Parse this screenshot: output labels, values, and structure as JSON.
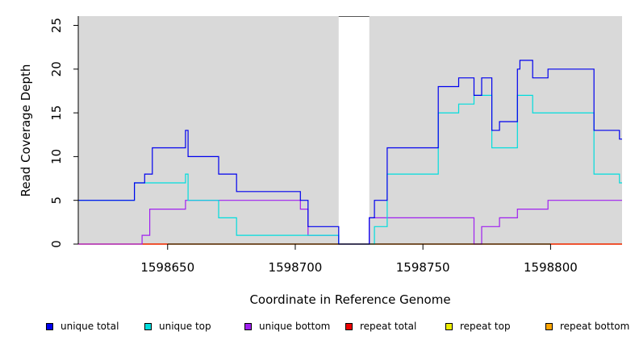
{
  "chart_data": {
    "type": "line",
    "xlabel": "Coordinate in Reference Genome",
    "ylabel": "Read Coverage Depth",
    "xlim": [
      1598615,
      1598828
    ],
    "ylim": [
      0,
      26
    ],
    "x_ticks": [
      1598650,
      1598700,
      1598750,
      1598800
    ],
    "x_tick_labels": [
      "1598650",
      "1598700",
      "1598750",
      "1598800"
    ],
    "y_ticks": [
      0,
      5,
      10,
      15,
      20,
      25
    ],
    "y_tick_labels": [
      "0",
      "5",
      "10",
      "15",
      "20",
      "25"
    ],
    "background_color": "#d9d9d9",
    "gap_region": [
      1598717,
      1598729
    ],
    "grid": false,
    "legend_position": "bottom",
    "series": [
      {
        "name": "unique total",
        "color": "#0000ee",
        "steps": [
          [
            1598615,
            5
          ],
          [
            1598637,
            7
          ],
          [
            1598641,
            8
          ],
          [
            1598644,
            11
          ],
          [
            1598657,
            13
          ],
          [
            1598658,
            10
          ],
          [
            1598670,
            8
          ],
          [
            1598677,
            6
          ],
          [
            1598702,
            5
          ],
          [
            1598705,
            2
          ],
          [
            1598717,
            0
          ],
          [
            1598729,
            3
          ],
          [
            1598731,
            5
          ],
          [
            1598736,
            11
          ],
          [
            1598756,
            18
          ],
          [
            1598764,
            19
          ],
          [
            1598770,
            17
          ],
          [
            1598773,
            19
          ],
          [
            1598777,
            13
          ],
          [
            1598780,
            14
          ],
          [
            1598787,
            20
          ],
          [
            1598788,
            21
          ],
          [
            1598793,
            19
          ],
          [
            1598799,
            20
          ],
          [
            1598817,
            13
          ],
          [
            1598827,
            12
          ],
          [
            1598828,
            12
          ]
        ]
      },
      {
        "name": "unique top",
        "color": "#00dddd",
        "steps": [
          [
            1598615,
            5
          ],
          [
            1598637,
            7
          ],
          [
            1598657,
            8
          ],
          [
            1598658,
            5
          ],
          [
            1598670,
            3
          ],
          [
            1598677,
            1
          ],
          [
            1598705,
            1
          ],
          [
            1598717,
            0
          ],
          [
            1598731,
            2
          ],
          [
            1598736,
            8
          ],
          [
            1598756,
            15
          ],
          [
            1598764,
            16
          ],
          [
            1598770,
            17
          ],
          [
            1598777,
            11
          ],
          [
            1598787,
            17
          ],
          [
            1598793,
            15
          ],
          [
            1598817,
            8
          ],
          [
            1598827,
            7
          ],
          [
            1598828,
            7
          ]
        ]
      },
      {
        "name": "unique bottom",
        "color": "#a020f0",
        "steps": [
          [
            1598615,
            0
          ],
          [
            1598640,
            1
          ],
          [
            1598643,
            4
          ],
          [
            1598657,
            5
          ],
          [
            1598702,
            4
          ],
          [
            1598705,
            1
          ],
          [
            1598717,
            0
          ],
          [
            1598729,
            3
          ],
          [
            1598770,
            0
          ],
          [
            1598773,
            2
          ],
          [
            1598780,
            3
          ],
          [
            1598787,
            4
          ],
          [
            1598799,
            5
          ],
          [
            1598828,
            5
          ]
        ]
      },
      {
        "name": "repeat total",
        "color": "#ee0000",
        "steps": [
          [
            1598615,
            0
          ],
          [
            1598828,
            0
          ]
        ]
      },
      {
        "name": "repeat top",
        "color": "#eeee00",
        "steps": [
          [
            1598615,
            0
          ],
          [
            1598828,
            0
          ]
        ]
      },
      {
        "name": "repeat bottom",
        "color": "#ffa500",
        "steps": [
          [
            1598615,
            0
          ],
          [
            1598828,
            0
          ]
        ]
      }
    ]
  }
}
